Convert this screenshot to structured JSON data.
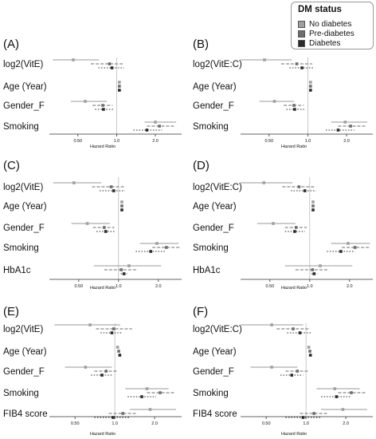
{
  "legend": {
    "title": "DM status",
    "items": [
      {
        "label": "No diabetes",
        "color": "#a0a0a0"
      },
      {
        "label": "Pre-diabetes",
        "color": "#6e6e6e"
      },
      {
        "label": "Diabetes",
        "color": "#2a2a2a"
      }
    ]
  },
  "colors": {
    "no_diabetes": "#a0a0a0",
    "pre_diabetes": "#6e6e6e",
    "diabetes": "#2a2a2a",
    "line_no": "#9a9a9a",
    "reference": "#bbbbbb",
    "axis": "#333333"
  },
  "chart_data": [
    {
      "panel": "(A)",
      "type": "forest",
      "xlabel": "Hazard Ratio",
      "xscale": "log",
      "xticks": [
        0.5,
        1.0,
        2.0
      ],
      "xtick_labels": [
        "0.50",
        "1.0",
        "2.0"
      ],
      "xlim": [
        0.3,
        3.2
      ],
      "reference_line": 1.0,
      "variables": [
        "log2(VitE)",
        "Age (Year)",
        "Gender_F",
        "Smoking"
      ],
      "series": [
        {
          "name": "No diabetes",
          "estimates": [
            [
              0.46,
              0.32,
              0.73
            ],
            [
              1.05,
              1.04,
              1.06
            ],
            [
              0.57,
              0.44,
              0.84
            ],
            [
              2.0,
              1.65,
              2.9
            ]
          ]
        },
        {
          "name": "Pre-diabetes",
          "estimates": [
            [
              0.88,
              0.63,
              1.12
            ],
            [
              1.05,
              1.04,
              1.06
            ],
            [
              0.78,
              0.65,
              0.93
            ],
            [
              2.15,
              1.72,
              2.85
            ]
          ]
        },
        {
          "name": "Diabetes",
          "estimates": [
            [
              0.92,
              0.72,
              1.14
            ],
            [
              1.05,
              1.04,
              1.06
            ],
            [
              0.79,
              0.68,
              0.94
            ],
            [
              1.72,
              1.35,
              2.25
            ]
          ]
        }
      ]
    },
    {
      "panel": "(B)",
      "type": "forest",
      "xlabel": "Hazard Ratio",
      "xscale": "log",
      "xticks": [
        0.5,
        1.0,
        2.0
      ],
      "xtick_labels": [
        "0.50",
        "1.0",
        "2.0"
      ],
      "xlim": [
        0.3,
        3.2
      ],
      "reference_line": 1.0,
      "variables": [
        "log2(VitE:C)",
        "Age (Year)",
        "Gender_F",
        "Smoking"
      ],
      "series": [
        {
          "name": "No diabetes",
          "estimates": [
            [
              0.46,
              0.3,
              0.75
            ],
            [
              1.05,
              1.04,
              1.06
            ],
            [
              0.55,
              0.42,
              0.78
            ],
            [
              1.95,
              1.52,
              2.9
            ]
          ]
        },
        {
          "name": "Pre-diabetes",
          "estimates": [
            [
              0.82,
              0.62,
              1.08
            ],
            [
              1.05,
              1.04,
              1.06
            ],
            [
              0.78,
              0.65,
              0.93
            ],
            [
              2.15,
              1.72,
              2.85
            ]
          ]
        },
        {
          "name": "Diabetes",
          "estimates": [
            [
              0.9,
              0.72,
              1.12
            ],
            [
              1.05,
              1.04,
              1.06
            ],
            [
              0.79,
              0.68,
              0.94
            ],
            [
              1.72,
              1.38,
              2.3
            ]
          ]
        }
      ]
    },
    {
      "panel": "(C)",
      "type": "forest",
      "xlabel": "Hazard Ratio",
      "xscale": "log",
      "xticks": [
        0.5,
        1.0,
        2.0
      ],
      "xtick_labels": [
        "0.50",
        "1.0",
        "2.0"
      ],
      "xlim": [
        0.3,
        3.0
      ],
      "reference_line": 1.0,
      "variables": [
        "log2(VitE)",
        "Age (Year)",
        "Gender_F",
        "Smoking",
        "HbA1c"
      ],
      "series": [
        {
          "name": "No diabetes",
          "estimates": [
            [
              0.46,
              0.32,
              0.74
            ],
            [
              1.06,
              1.05,
              1.07
            ],
            [
              0.58,
              0.44,
              0.86
            ],
            [
              1.95,
              1.45,
              2.85
            ]
          ]
        },
        {
          "name": "Pre-diabetes",
          "estimates": [
            [
              0.88,
              0.63,
              1.1
            ],
            [
              1.06,
              1.05,
              1.07
            ],
            [
              0.78,
              0.64,
              0.93
            ],
            [
              2.3,
              1.8,
              2.9
            ]
          ]
        },
        {
          "name": "Diabetes",
          "estimates": [
            [
              0.92,
              0.72,
              1.12
            ],
            [
              1.06,
              1.05,
              1.07
            ],
            [
              0.8,
              0.68,
              0.95
            ],
            [
              1.75,
              1.35,
              2.25
            ]
          ]
        }
      ],
      "series_extra": [
        {
          "variable": "HbA1c",
          "no_diabetes": [
            1.2,
            0.65,
            2.1
          ],
          "pre_diabetes": [
            1.05,
            0.78,
            1.4
          ],
          "diabetes": [
            1.1,
            1.04,
            1.16
          ]
        }
      ]
    },
    {
      "panel": "(D)",
      "type": "forest",
      "xlabel": "Hazard Ratio",
      "xscale": "log",
      "xticks": [
        0.5,
        1.0,
        2.0
      ],
      "xtick_labels": [
        "0.50",
        "1.0",
        "2.0"
      ],
      "xlim": [
        0.3,
        3.0
      ],
      "reference_line": 1.0,
      "variables": [
        "log2(VitE:C)",
        "Age (Year)",
        "Gender_F",
        "Smoking",
        "HbA1c"
      ],
      "series": [
        {
          "name": "No diabetes",
          "estimates": [
            [
              0.45,
              0.3,
              0.74
            ],
            [
              1.06,
              1.05,
              1.07
            ],
            [
              0.53,
              0.4,
              0.78
            ],
            [
              1.95,
              1.45,
              2.85
            ]
          ]
        },
        {
          "name": "Pre-diabetes",
          "estimates": [
            [
              0.83,
              0.62,
              1.08
            ],
            [
              1.06,
              1.05,
              1.07
            ],
            [
              0.79,
              0.65,
              0.95
            ],
            [
              2.2,
              1.75,
              2.85
            ]
          ]
        },
        {
          "name": "Diabetes",
          "estimates": [
            [
              0.92,
              0.72,
              1.12
            ],
            [
              1.06,
              1.05,
              1.07
            ],
            [
              0.77,
              0.65,
              0.92
            ],
            [
              1.72,
              1.35,
              2.2
            ]
          ]
        }
      ],
      "series_extra": [
        {
          "variable": "HbA1c",
          "no_diabetes": [
            1.2,
            0.65,
            2.1
          ],
          "pre_diabetes": [
            1.05,
            0.78,
            1.4
          ],
          "diabetes": [
            1.08,
            1.03,
            1.14
          ]
        }
      ]
    },
    {
      "panel": "(E)",
      "type": "forest",
      "xlabel": "Hazard Ratio",
      "xscale": "log",
      "xticks": [
        0.5,
        1.0,
        2.0
      ],
      "xtick_labels": [
        "0.50",
        "1.0",
        "2.0"
      ],
      "xlim": [
        0.32,
        3.2
      ],
      "reference_line": 1.0,
      "variables": [
        "log2(VitE)",
        "Age (Year)",
        "Gender_F",
        "Smoking",
        "FIB4 score"
      ],
      "series": [
        {
          "name": "No diabetes",
          "estimates": [
            [
              0.65,
              0.35,
              1.1
            ],
            [
              1.05,
              1.04,
              1.06
            ],
            [
              0.6,
              0.42,
              0.95
            ],
            [
              1.75,
              1.2,
              2.55
            ]
          ]
        },
        {
          "name": "Pre-diabetes",
          "estimates": [
            [
              0.98,
              0.72,
              1.35
            ],
            [
              1.07,
              1.06,
              1.08
            ],
            [
              0.86,
              0.7,
              1.05
            ],
            [
              2.2,
              1.75,
              2.85
            ]
          ]
        },
        {
          "name": "Diabetes",
          "estimates": [
            [
              0.95,
              0.78,
              1.15
            ],
            [
              1.09,
              1.08,
              1.1
            ],
            [
              0.8,
              0.66,
              0.97
            ],
            [
              1.6,
              1.25,
              2.05
            ]
          ]
        }
      ],
      "series_extra": [
        {
          "variable": "FIB4 score",
          "no_diabetes": [
            1.85,
            1.3,
            2.9
          ],
          "pre_diabetes": [
            1.15,
            0.9,
            1.45
          ],
          "diabetes": [
            0.97,
            0.7,
            1.3
          ]
        }
      ]
    },
    {
      "panel": "(F)",
      "type": "forest",
      "xlabel": "Hazard Ratio",
      "xscale": "log",
      "xticks": [
        0.5,
        1.0,
        2.0
      ],
      "xtick_labels": [
        "0.50",
        "1.0",
        "2.0"
      ],
      "xlim": [
        0.32,
        3.2
      ],
      "reference_line": 1.0,
      "variables": [
        "log2(VitE:C)",
        "Age (Year)",
        "Gender_F",
        "Smoking",
        "FIB4 score"
      ],
      "series": [
        {
          "name": "No diabetes",
          "estimates": [
            [
              0.55,
              0.32,
              0.95
            ],
            [
              1.05,
              1.04,
              1.06
            ],
            [
              0.55,
              0.38,
              0.86
            ],
            [
              1.65,
              1.2,
              2.55
            ]
          ]
        },
        {
          "name": "Pre-diabetes",
          "estimates": [
            [
              0.8,
              0.6,
              1.05
            ],
            [
              1.07,
              1.06,
              1.08
            ],
            [
              0.86,
              0.7,
              1.05
            ],
            [
              2.2,
              1.75,
              2.85
            ]
          ]
        },
        {
          "name": "Diabetes",
          "estimates": [
            [
              0.9,
              0.72,
              1.1
            ],
            [
              1.08,
              1.07,
              1.09
            ],
            [
              0.78,
              0.64,
              0.95
            ],
            [
              1.7,
              1.3,
              2.2
            ]
          ]
        }
      ],
      "series_extra": [
        {
          "variable": "FIB4 score",
          "no_diabetes": [
            1.9,
            1.3,
            2.9
          ],
          "pre_diabetes": [
            1.15,
            0.9,
            1.45
          ],
          "diabetes": [
            0.95,
            0.7,
            1.3
          ]
        }
      ]
    }
  ]
}
